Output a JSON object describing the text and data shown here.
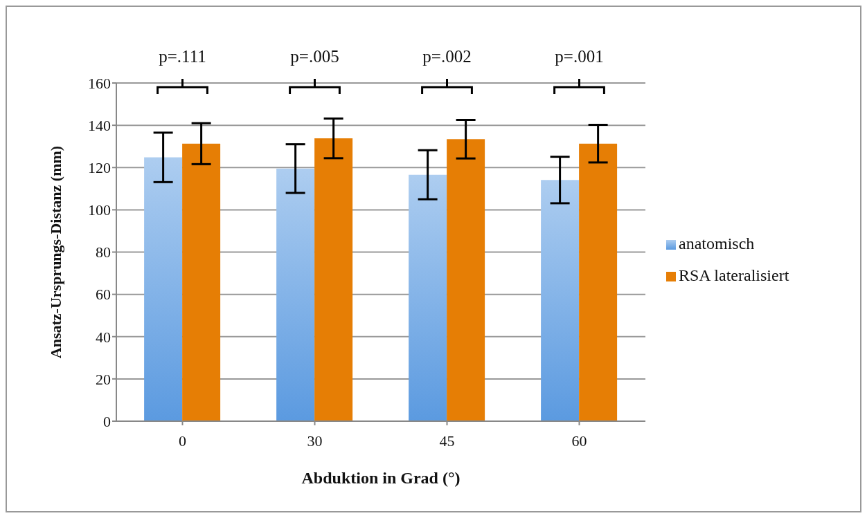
{
  "chart_data": {
    "type": "bar",
    "xlabel": "Abduktion in Grad (°)",
    "ylabel": "Ansatz-Ursprungs-Distanz  (mm)",
    "categories": [
      "0",
      "30",
      "45",
      "60"
    ],
    "series": [
      {
        "name": "anatomisch",
        "color": "#5b9ae0",
        "values": [
          124.8,
          119.5,
          116.6,
          114.1
        ],
        "errors": [
          11.7,
          11.5,
          11.6,
          11
        ]
      },
      {
        "name": "RSA lateralisiert",
        "color": "#e67e05",
        "values": [
          131.3,
          133.8,
          133.4,
          131.3
        ],
        "errors": [
          9.7,
          9.4,
          9.1,
          8.9
        ]
      }
    ],
    "ylim": [
      0,
      160
    ],
    "yticks": [
      0,
      20,
      40,
      60,
      80,
      100,
      120,
      140,
      160
    ],
    "grid": "y",
    "legend": "right",
    "annotations": [
      "p=.111",
      "p=.005",
      "p=.002",
      "p=.001"
    ]
  }
}
